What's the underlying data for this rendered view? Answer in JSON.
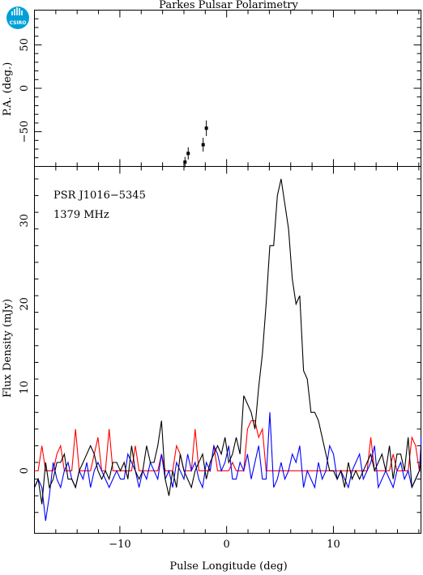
{
  "title": "Parkes Pulsar Polarimetry",
  "logo_text": "CSIRO",
  "colors": {
    "total": "#000000",
    "linear": "#ff0000",
    "circular": "#0000ff",
    "logo": "#00a0d8"
  },
  "chart_data": [
    {
      "type": "scatter",
      "panel": "top",
      "ylabel": "P.A. (deg.)",
      "xlim": [
        -18,
        18.2
      ],
      "ylim": [
        -90,
        90
      ],
      "yticks": [
        -50,
        0,
        50
      ],
      "points": [
        {
          "x": -3.9,
          "y": -85,
          "err": 6
        },
        {
          "x": -3.6,
          "y": -75,
          "err": 7
        },
        {
          "x": -2.2,
          "y": -65,
          "err": 8
        },
        {
          "x": -1.9,
          "y": -46,
          "err": 9
        }
      ]
    },
    {
      "type": "line",
      "panel": "bottom",
      "annotation_lines": [
        "PSR J1016−5345",
        "1379 MHz"
      ],
      "xlabel": "Pulse Longitude (deg)",
      "ylabel": "Flux Density (mJy)",
      "xlim": [
        -18,
        18.2
      ],
      "ylim": [
        -7.5,
        36.5
      ],
      "xticks": [
        -10,
        0,
        10
      ],
      "yticks": [
        0,
        10,
        20,
        30
      ],
      "series": [
        {
          "key": "total",
          "x_start": -18,
          "x_step": 0.35,
          "values": [
            -2,
            -1,
            -4,
            1,
            -2,
            -1,
            1,
            1,
            2,
            -1,
            -1,
            -2,
            0,
            1,
            2,
            3,
            2,
            0,
            -1,
            0,
            -1,
            1,
            1,
            0,
            1,
            -1,
            3,
            0,
            -1,
            0,
            3,
            1,
            1,
            3,
            6,
            -1,
            -3,
            0,
            -2,
            2,
            0,
            -1,
            -2,
            0,
            1,
            2,
            -1,
            1,
            2,
            3,
            2,
            4,
            1,
            2,
            4,
            2,
            9,
            8,
            7,
            5,
            10,
            14,
            20,
            27,
            27,
            33,
            35,
            32,
            29,
            23,
            20,
            21,
            12,
            11,
            7,
            7,
            6,
            4,
            2,
            0,
            0,
            -1,
            0,
            -2,
            1,
            -1,
            0,
            -1,
            0,
            1,
            2,
            0,
            1,
            2,
            0,
            3,
            -1,
            2,
            2,
            0,
            4,
            -2,
            -1,
            0,
            1,
            2,
            3,
            0,
            -1,
            1,
            0,
            -1,
            0
          ]
        },
        {
          "key": "linear",
          "x_start": -18,
          "x_step": 0.35,
          "values": [
            0,
            0,
            3,
            0,
            0,
            0,
            2,
            3,
            0,
            0,
            0,
            5,
            0,
            0,
            0,
            0,
            2,
            4,
            0,
            0,
            5,
            0,
            0,
            0,
            0,
            0,
            0,
            3,
            0,
            0,
            0,
            0,
            0,
            0,
            2,
            0,
            0,
            0,
            3,
            2,
            0,
            0,
            0,
            5,
            0,
            0,
            0,
            0,
            3,
            0,
            0,
            0,
            0,
            1,
            0,
            0,
            0,
            5,
            6,
            6,
            4,
            5,
            0,
            0,
            0,
            0,
            0,
            0,
            0,
            0,
            0,
            0,
            0,
            0,
            0,
            0,
            0,
            0,
            0,
            0,
            0,
            0,
            0,
            0,
            0,
            0,
            0,
            0,
            0,
            0,
            4,
            0,
            0,
            0,
            0,
            0,
            2,
            0,
            0,
            0,
            0,
            4,
            3,
            0,
            0,
            0,
            0,
            0,
            0,
            4,
            0,
            0,
            0,
            0
          ]
        },
        {
          "key": "circular",
          "x_start": -18,
          "x_step": 0.35,
          "values": [
            -2,
            -1,
            -2,
            -6,
            -3,
            1,
            -1,
            -2,
            0,
            1,
            -1,
            -2,
            0,
            -1,
            1,
            -2,
            0,
            1,
            0,
            -1,
            -2,
            -1,
            0,
            -1,
            -1,
            2,
            1,
            0,
            -2,
            0,
            -1,
            1,
            0,
            -1,
            2,
            -1,
            0,
            -2,
            1,
            0,
            -1,
            2,
            0,
            1,
            -1,
            -2,
            1,
            0,
            3,
            2,
            0,
            1,
            3,
            -1,
            -1,
            1,
            0,
            2,
            -1,
            1,
            3,
            -1,
            -1,
            7,
            -2,
            -1,
            1,
            -1,
            0,
            2,
            1,
            3,
            -2,
            0,
            -1,
            -2,
            1,
            -1,
            0,
            3,
            2,
            -1,
            0,
            -1,
            -2,
            0,
            1,
            2,
            -1,
            0,
            1,
            3,
            -2,
            -1,
            0,
            -1,
            -2,
            0,
            1,
            -1,
            0,
            -2,
            -1,
            0,
            3,
            1,
            -1,
            0,
            2,
            -1,
            0,
            4,
            2
          ]
        }
      ]
    }
  ]
}
